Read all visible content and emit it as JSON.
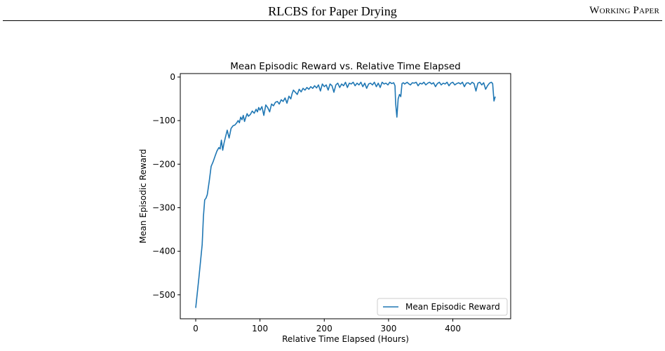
{
  "header": {
    "title": "RLCBS for Paper Drying",
    "right": "Working Paper"
  },
  "chart_data": {
    "type": "line",
    "title": "Mean Episodic Reward vs. Relative Time Elapsed",
    "xlabel": "Relative Time Elapsed (Hours)",
    "ylabel": "Mean Episodic Reward",
    "xlim": [
      -24,
      490
    ],
    "ylim": [
      -555,
      8
    ],
    "xticks": [
      0,
      100,
      200,
      300,
      400
    ],
    "yticks": [
      0,
      -100,
      -200,
      -300,
      -400,
      -500
    ],
    "ytick_labels": [
      "0",
      "−100",
      "−200",
      "−300",
      "−400",
      "−500"
    ],
    "grid": false,
    "legend": "lower-right",
    "color": "#1f77b4",
    "series": [
      {
        "name": "Mean Episodic Reward",
        "x": [
          0,
          5,
          10,
          12,
          14,
          16,
          18,
          21,
          24,
          27,
          30,
          33,
          36,
          38,
          40,
          42,
          44,
          46,
          49,
          52,
          55,
          58,
          61,
          64,
          66,
          68,
          70,
          72,
          74,
          76,
          78,
          80,
          82,
          85,
          88,
          91,
          94,
          96,
          98,
          100,
          103,
          106,
          109,
          112,
          115,
          118,
          121,
          124,
          127,
          130,
          133,
          136,
          139,
          142,
          145,
          148,
          150,
          152,
          155,
          158,
          161,
          164,
          167,
          170,
          173,
          176,
          179,
          182,
          185,
          188,
          191,
          194,
          197,
          200,
          203,
          206,
          209,
          212,
          215,
          218,
          221,
          224,
          227,
          230,
          233,
          236,
          239,
          242,
          245,
          248,
          251,
          254,
          257,
          260,
          263,
          266,
          269,
          272,
          275,
          278,
          281,
          284,
          287,
          290,
          293,
          296,
          299,
          302,
          305,
          308,
          310,
          311,
          313,
          315,
          317,
          319,
          321,
          323,
          325,
          327,
          329,
          331,
          334,
          337,
          340,
          343,
          346,
          349,
          352,
          355,
          358,
          361,
          364,
          367,
          370,
          373,
          376,
          379,
          382,
          385,
          388,
          391,
          394,
          397,
          400,
          403,
          406,
          409,
          412,
          415,
          418,
          421,
          424,
          427,
          430,
          433,
          436,
          439,
          442,
          445,
          448,
          451,
          454,
          457,
          460,
          462,
          464,
          466
        ],
        "values": [
          -530,
          -460,
          -385,
          -320,
          -282,
          -278,
          -270,
          -240,
          -205,
          -195,
          -182,
          -170,
          -162,
          -165,
          -145,
          -168,
          -152,
          -140,
          -122,
          -140,
          -118,
          -112,
          -110,
          -105,
          -100,
          -105,
          -92,
          -98,
          -88,
          -102,
          -92,
          -84,
          -90,
          -86,
          -78,
          -83,
          -74,
          -80,
          -70,
          -76,
          -68,
          -88,
          -64,
          -70,
          -80,
          -62,
          -66,
          -58,
          -56,
          -62,
          -52,
          -56,
          -48,
          -60,
          -44,
          -50,
          -38,
          -30,
          -35,
          -40,
          -28,
          -34,
          -26,
          -30,
          -24,
          -28,
          -22,
          -26,
          -20,
          -25,
          -18,
          -32,
          -16,
          -22,
          -18,
          -30,
          -16,
          -20,
          -35,
          -18,
          -14,
          -24,
          -16,
          -20,
          -12,
          -24,
          -14,
          -16,
          -12,
          -20,
          -14,
          -18,
          -12,
          -22,
          -14,
          -26,
          -16,
          -14,
          -18,
          -12,
          -22,
          -14,
          -24,
          -12,
          -16,
          -14,
          -18,
          -12,
          -15,
          -13,
          -20,
          -60,
          -92,
          -50,
          -40,
          -45,
          -15,
          -13,
          -16,
          -14,
          -12,
          -15,
          -18,
          -13,
          -14,
          -12,
          -20,
          -14,
          -16,
          -12,
          -18,
          -14,
          -12,
          -16,
          -13,
          -22,
          -15,
          -12,
          -18,
          -14,
          -16,
          -12,
          -20,
          -14,
          -12,
          -18,
          -15,
          -13,
          -16,
          -12,
          -22,
          -14,
          -13,
          -17,
          -12,
          -15,
          -32,
          -14,
          -12,
          -18,
          -13,
          -28,
          -20,
          -14,
          -12,
          -15,
          -55,
          -45
        ]
      }
    ]
  }
}
